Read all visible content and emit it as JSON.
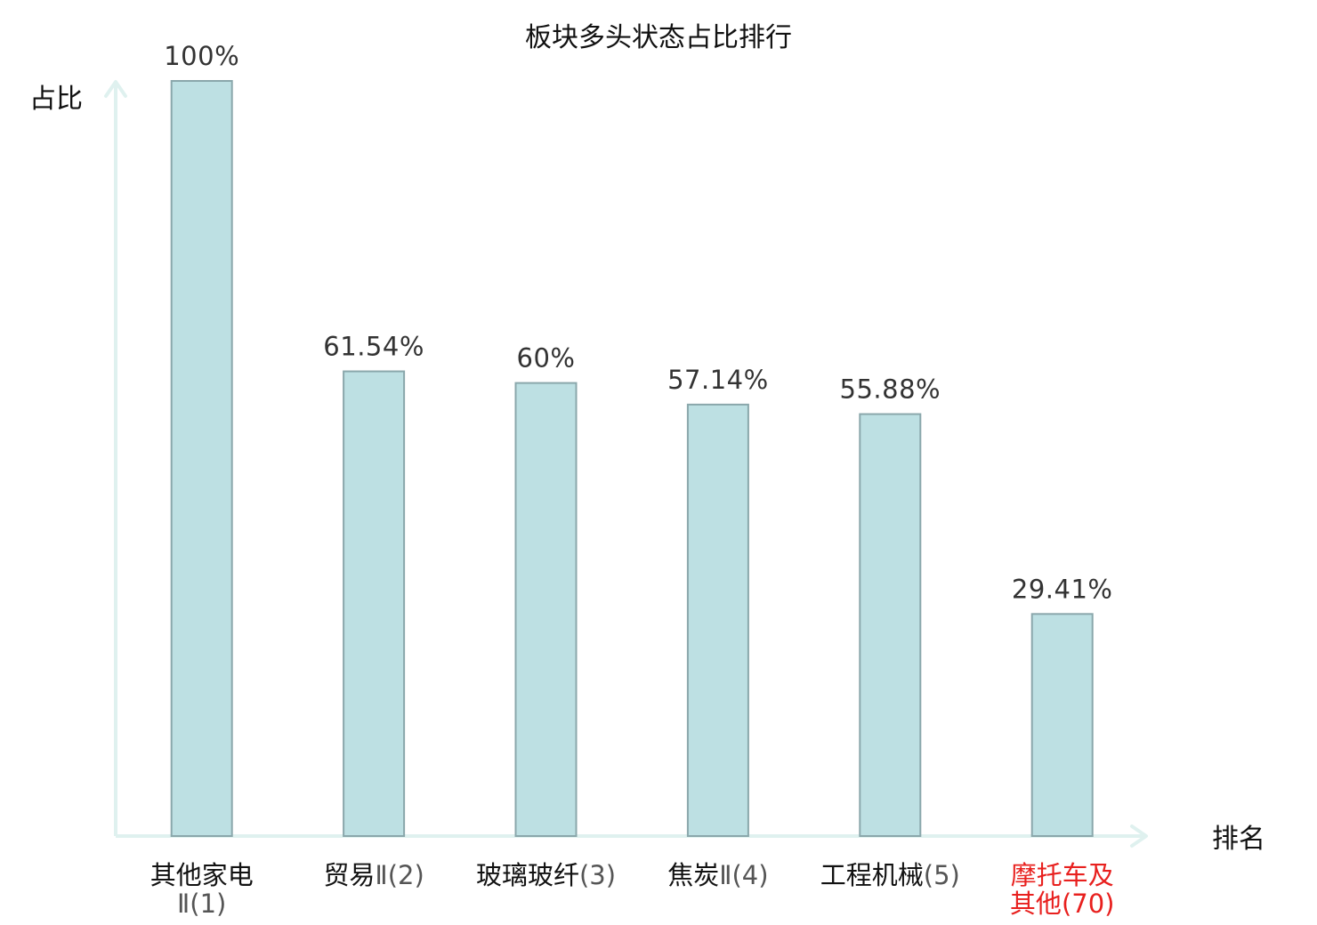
{
  "chart_data": {
    "type": "bar",
    "title": "板块多头状态占比排行",
    "ylabel": "占比",
    "xlabel": "排名",
    "ylim": [
      0,
      100
    ],
    "grid": false,
    "legend": "none",
    "bar_color": "#bde0e3",
    "bar_border_color": "#8aa7ab",
    "axis_color": "#dff1ef",
    "highlight_color": "#e8201e",
    "categories": [
      {
        "lines": [
          {
            "name": "其他家电",
            "rank": ""
          },
          {
            "name": "",
            "rank": "Ⅱ(1)"
          }
        ],
        "highlight": false
      },
      {
        "lines": [
          {
            "name": "贸易",
            "rank": "Ⅱ(2)"
          }
        ],
        "highlight": false
      },
      {
        "lines": [
          {
            "name": "玻璃玻纤",
            "rank": "(3)"
          }
        ],
        "highlight": false
      },
      {
        "lines": [
          {
            "name": "焦炭",
            "rank": "Ⅱ(4)"
          }
        ],
        "highlight": false
      },
      {
        "lines": [
          {
            "name": "工程机械",
            "rank": "(5)"
          }
        ],
        "highlight": false
      },
      {
        "lines": [
          {
            "name": "摩托车及",
            "rank": ""
          },
          {
            "name": "其他",
            "rank": "(70)"
          }
        ],
        "highlight": true
      }
    ],
    "values": [
      100,
      61.54,
      60,
      57.14,
      55.88,
      29.41
    ],
    "value_labels": [
      "100%",
      "61.54%",
      "60%",
      "57.14%",
      "55.88%",
      "29.41%"
    ]
  }
}
